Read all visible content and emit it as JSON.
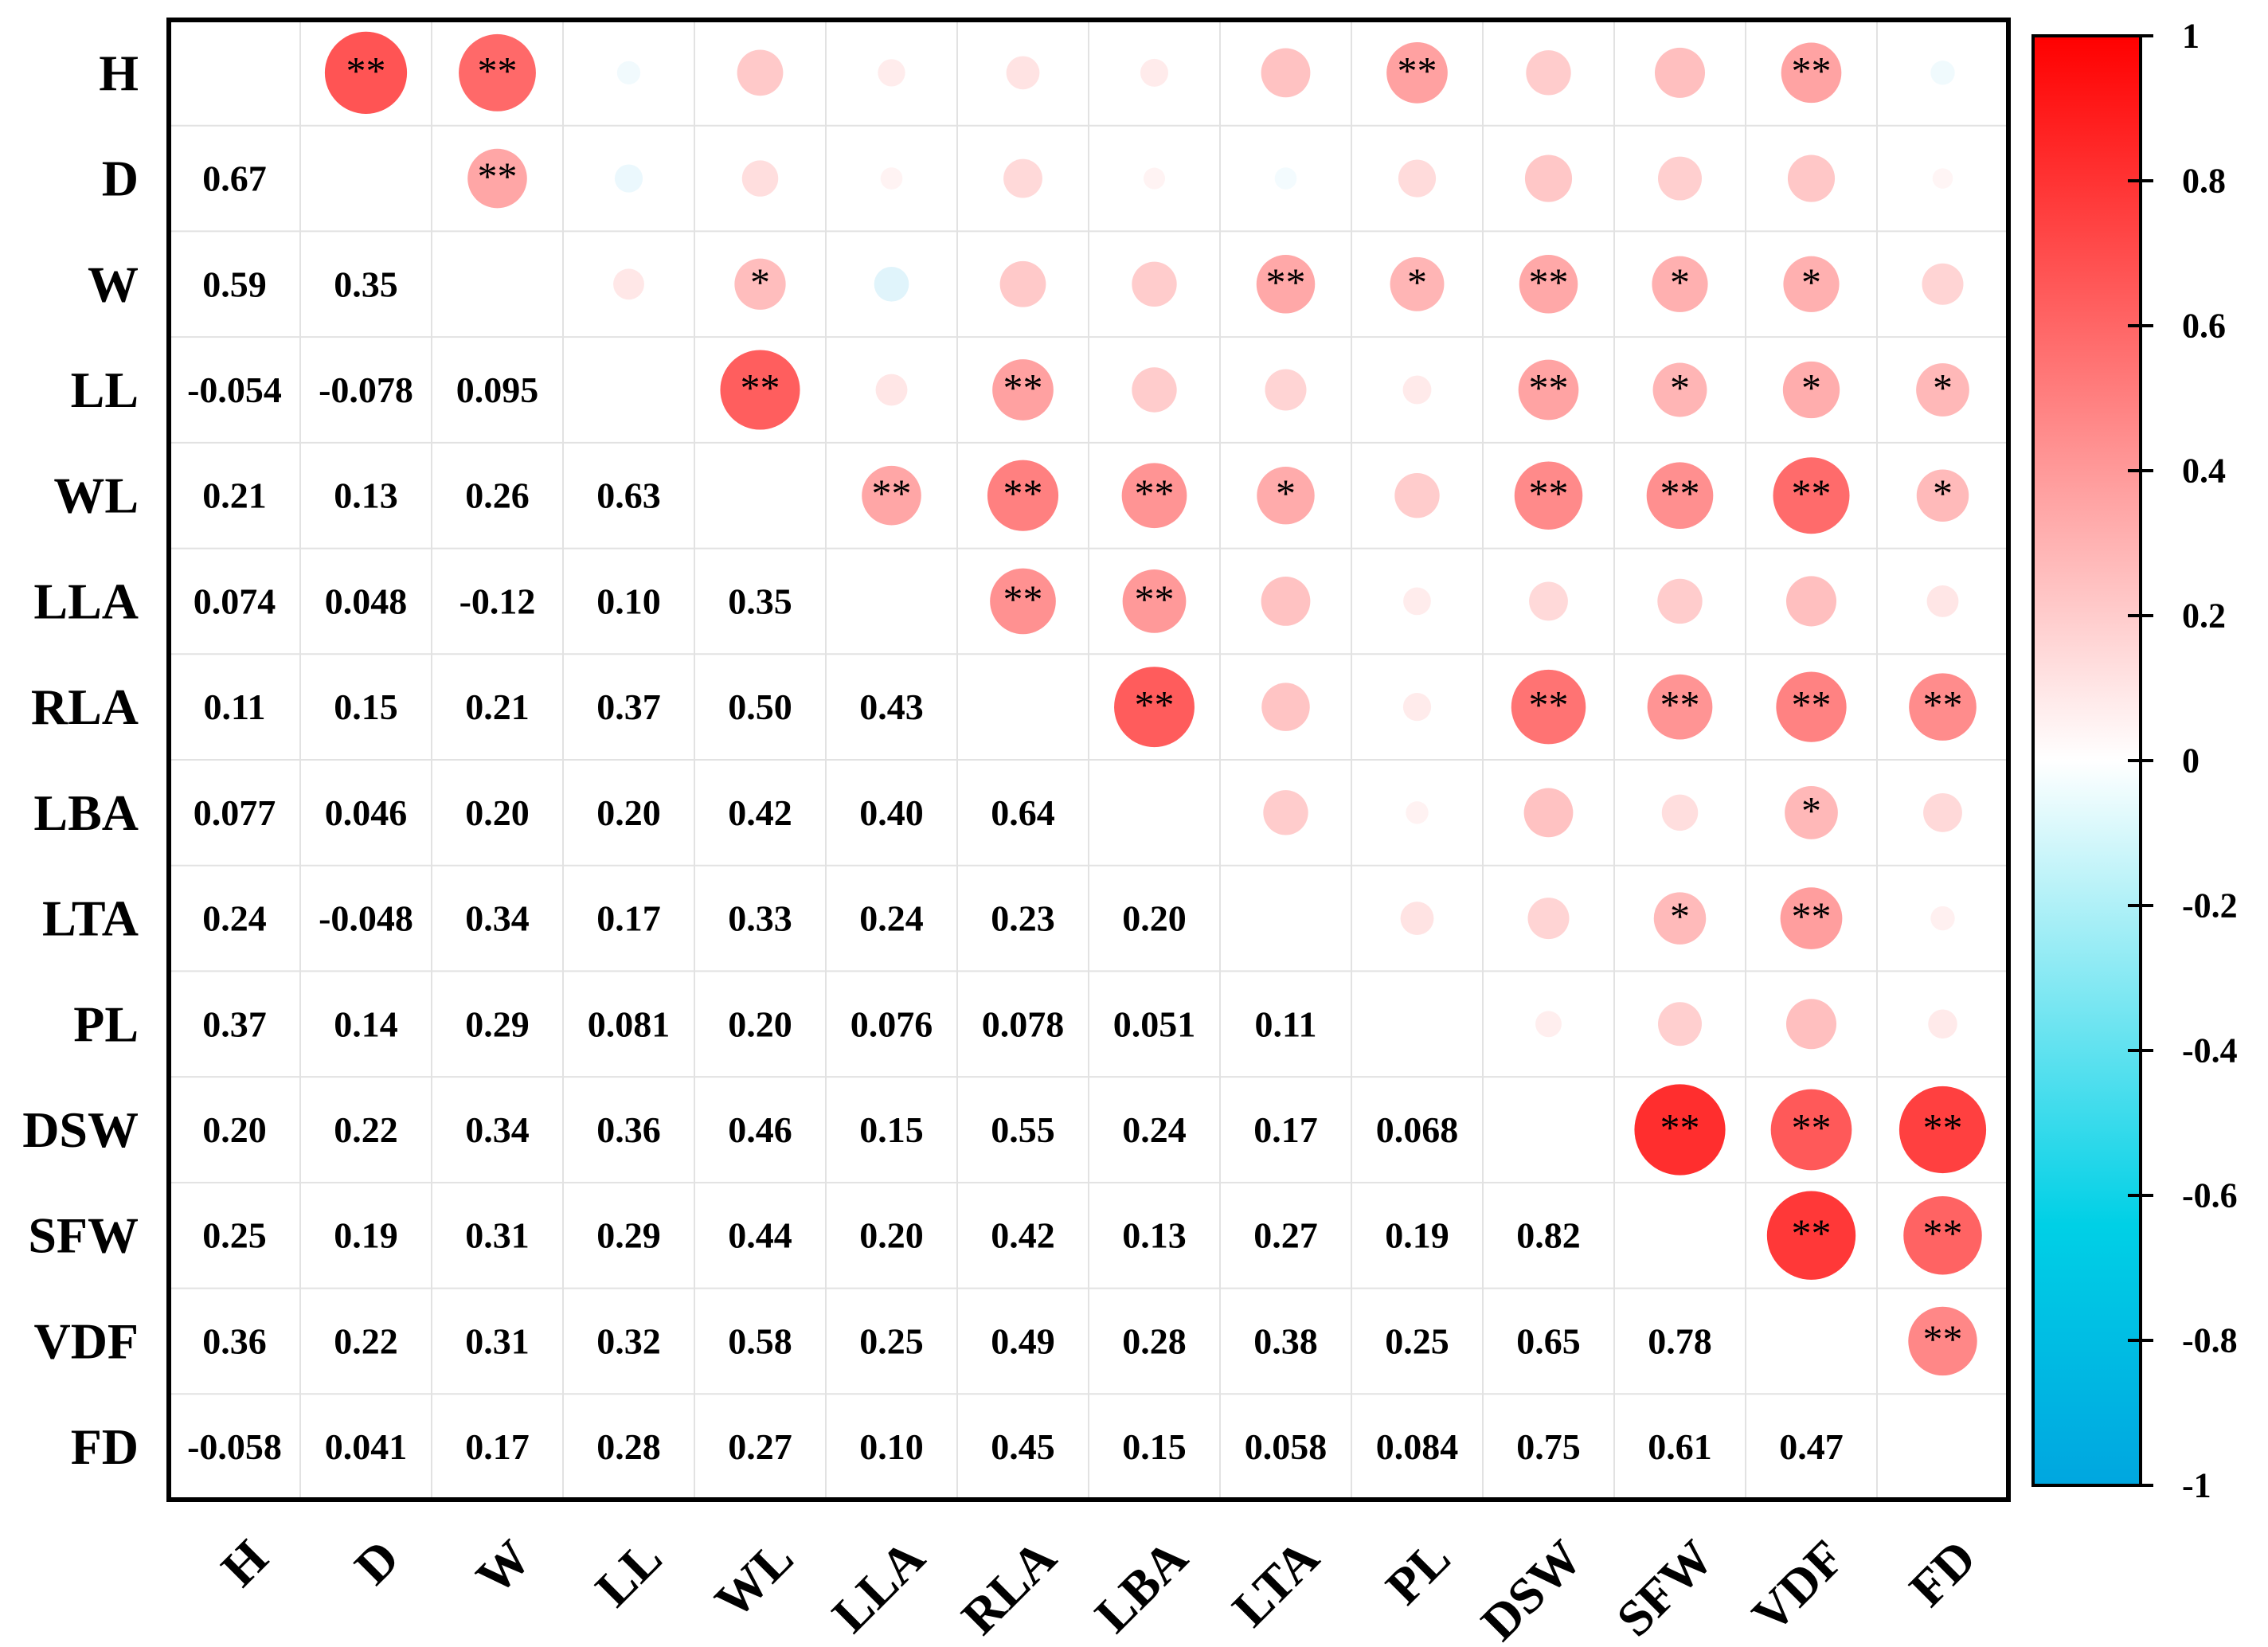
{
  "chart_data": {
    "type": "heatmap",
    "title": "",
    "variables": [
      "H",
      "D",
      "W",
      "LL",
      "WL",
      "LLA",
      "RLA",
      "LBA",
      "LTA",
      "PL",
      "DSW",
      "SFW",
      "VDF",
      "FD"
    ],
    "lower_labels": [
      [],
      [
        "0.67"
      ],
      [
        "0.59",
        "0.35"
      ],
      [
        "-0.054",
        "-0.078",
        "0.095"
      ],
      [
        "0.21",
        "0.13",
        "0.26",
        "0.63"
      ],
      [
        "0.074",
        "0.048",
        "-0.12",
        "0.10",
        "0.35"
      ],
      [
        "0.11",
        "0.15",
        "0.21",
        "0.37",
        "0.50",
        "0.43"
      ],
      [
        "0.077",
        "0.046",
        "0.20",
        "0.20",
        "0.42",
        "0.40",
        "0.64"
      ],
      [
        "0.24",
        "-0.048",
        "0.34",
        "0.17",
        "0.33",
        "0.24",
        "0.23",
        "0.20"
      ],
      [
        "0.37",
        "0.14",
        "0.29",
        "0.081",
        "0.20",
        "0.076",
        "0.078",
        "0.051",
        "0.11"
      ],
      [
        "0.20",
        "0.22",
        "0.34",
        "0.36",
        "0.46",
        "0.15",
        "0.55",
        "0.24",
        "0.17",
        "0.068"
      ],
      [
        "0.25",
        "0.19",
        "0.31",
        "0.29",
        "0.44",
        "0.20",
        "0.42",
        "0.13",
        "0.27",
        "0.19",
        "0.82"
      ],
      [
        "0.36",
        "0.22",
        "0.31",
        "0.32",
        "0.58",
        "0.25",
        "0.49",
        "0.28",
        "0.38",
        "0.25",
        "0.65",
        "0.78"
      ],
      [
        "-0.058",
        "0.041",
        "0.17",
        "0.28",
        "0.27",
        "0.10",
        "0.45",
        "0.15",
        "0.058",
        "0.084",
        "0.75",
        "0.61",
        "0.47"
      ]
    ],
    "significance": [
      [
        "",
        "**",
        "**",
        "",
        "",
        "",
        "",
        "",
        "",
        "**",
        "",
        "",
        "**",
        ""
      ],
      [
        "",
        "",
        "**",
        "",
        "",
        "",
        "",
        "",
        "",
        "",
        "",
        "",
        "",
        ""
      ],
      [
        "",
        "",
        "",
        "",
        "*",
        "",
        "",
        "",
        "**",
        "*",
        "**",
        "*",
        "*",
        ""
      ],
      [
        "",
        "",
        "",
        "",
        "**",
        "",
        "**",
        "",
        "",
        "",
        "**",
        "*",
        "*",
        "*"
      ],
      [
        "",
        "",
        "",
        "",
        "",
        "**",
        "**",
        "**",
        "*",
        "",
        "**",
        "**",
        "**",
        "*"
      ],
      [
        "",
        "",
        "",
        "",
        "",
        "",
        "**",
        "**",
        "",
        "",
        "",
        "",
        "",
        ""
      ],
      [
        "",
        "",
        "",
        "",
        "",
        "",
        "",
        "**",
        "",
        "",
        "**",
        "**",
        "**",
        "**"
      ],
      [
        "",
        "",
        "",
        "",
        "",
        "",
        "",
        "",
        "",
        "",
        "",
        "",
        "*",
        ""
      ],
      [
        "",
        "",
        "",
        "",
        "",
        "",
        "",
        "",
        "",
        "",
        "",
        "*",
        "**",
        ""
      ],
      [
        "",
        "",
        "",
        "",
        "",
        "",
        "",
        "",
        "",
        "",
        "",
        "",
        "",
        ""
      ],
      [
        "",
        "",
        "",
        "",
        "",
        "",
        "",
        "",
        "",
        "",
        "",
        "**",
        "**",
        "**"
      ],
      [
        "",
        "",
        "",
        "",
        "",
        "",
        "",
        "",
        "",
        "",
        "",
        "",
        "**",
        "**"
      ],
      [
        "",
        "",
        "",
        "",
        "",
        "",
        "",
        "",
        "",
        "",
        "",
        "",
        "",
        "**"
      ],
      [
        "",
        "",
        "",
        "",
        "",
        "",
        "",
        "",
        "",
        "",
        "",
        "",
        "",
        ""
      ]
    ],
    "colorbar": {
      "range": [
        -1,
        1
      ],
      "ticks": [
        "1",
        "0.8",
        "0.6",
        "0.4",
        "0.2",
        "0",
        "-0.2",
        "-0.4",
        "-0.6",
        "-0.8",
        "-1"
      ],
      "colors": {
        "negative": "#00a6e0",
        "zero": "#ffffff",
        "positive": "#ff0000"
      }
    },
    "grid": true,
    "legend": "right"
  }
}
